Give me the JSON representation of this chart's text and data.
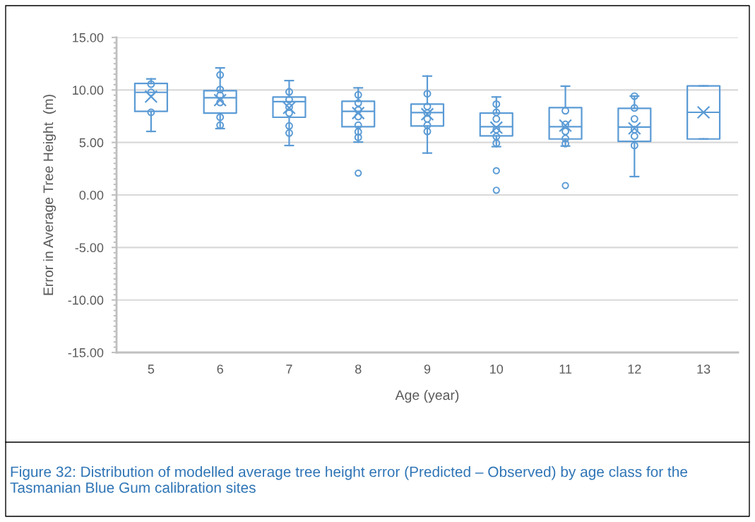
{
  "chart_data": {
    "type": "box",
    "xlabel": "Age (year)",
    "ylabel": "Error in Average Tree Height  (m)",
    "categories": [
      "5",
      "6",
      "7",
      "8",
      "9",
      "10",
      "11",
      "12",
      "13"
    ],
    "ylim": [
      -15,
      15
    ],
    "yticks": [
      {
        "value": -15,
        "label": "-15.00"
      },
      {
        "value": -10,
        "label": "-10.00"
      },
      {
        "value": -5,
        "label": "-5.00"
      },
      {
        "value": 0,
        "label": "0.00"
      },
      {
        "value": 5,
        "label": "5.00"
      },
      {
        "value": 10,
        "label": "10.00"
      },
      {
        "value": 15,
        "label": "15.00"
      }
    ],
    "grid": "y",
    "legend": false,
    "series": [
      {
        "color": "#5b9bd5",
        "boxes": [
          {
            "low": 6.05,
            "q1": 7.96,
            "median": 9.77,
            "q3": 10.62,
            "high": 11.05,
            "mean": 9.37
          },
          {
            "low": 6.32,
            "q1": 7.8,
            "median": 9.26,
            "q3": 9.93,
            "high": 12.1,
            "mean": 9.03
          },
          {
            "low": 4.71,
            "q1": 7.4,
            "median": 8.88,
            "q3": 9.33,
            "high": 10.89,
            "mean": 8.29
          },
          {
            "low": 5.04,
            "q1": 6.5,
            "median": 7.96,
            "q3": 8.92,
            "high": 10.2,
            "mean": 7.8,
            "outliers": [
              2.08
            ]
          },
          {
            "low": 3.99,
            "q1": 6.57,
            "median": 7.85,
            "q3": 8.65,
            "high": 11.32,
            "mean": 7.69
          },
          {
            "low": 4.6,
            "q1": 5.63,
            "median": 6.5,
            "q3": 7.8,
            "high": 9.33,
            "mean": 6.41,
            "outliers": [
              2.31,
              0.45
            ]
          },
          {
            "low": 4.66,
            "q1": 5.33,
            "median": 6.5,
            "q3": 8.32,
            "high": 10.36,
            "mean": 6.6,
            "outliers": [
              0.9
            ]
          },
          {
            "low": 1.75,
            "q1": 5.11,
            "median": 6.46,
            "q3": 8.25,
            "high": 9.41,
            "mean": 6.34
          },
          {
            "low": 5.33,
            "q1": 5.33,
            "median": 7.87,
            "q3": 10.38,
            "high": 10.38,
            "mean": 7.87
          }
        ]
      },
      {
        "type": "scatter",
        "color": "#5b9bd5",
        "marker": "circle",
        "x": [
          "5",
          "5",
          "5",
          "6",
          "6",
          "6",
          "6",
          "6",
          "6",
          "7",
          "7",
          "7",
          "7",
          "7",
          "7",
          "8",
          "8",
          "8",
          "8",
          "8",
          "8",
          "8",
          "9",
          "9",
          "9",
          "9",
          "9",
          "9",
          "10",
          "10",
          "10",
          "10",
          "10",
          "10",
          "11",
          "11",
          "11",
          "11",
          "11",
          "12",
          "12",
          "12",
          "12",
          "12",
          "12"
        ],
        "values": [
          10.56,
          9.77,
          7.87,
          11.43,
          10.04,
          9.48,
          8.81,
          7.4,
          6.64,
          9.82,
          9.08,
          8.36,
          7.8,
          6.57,
          5.9,
          9.53,
          8.76,
          8.09,
          7.46,
          6.64,
          6.01,
          5.49,
          9.64,
          8.43,
          7.8,
          7.24,
          6.64,
          6.05,
          8.65,
          7.87,
          7.24,
          6.23,
          5.56,
          4.93,
          8.02,
          6.72,
          6.05,
          5.38,
          4.89,
          9.41,
          8.29,
          7.24,
          6.23,
          5.6,
          4.71
        ]
      }
    ],
    "annotations": [
      "Figure 32: Distribution of modelled average tree height error (Predicted – Observed) by age class for the Tasmanian Blue Gum calibration sites"
    ]
  }
}
